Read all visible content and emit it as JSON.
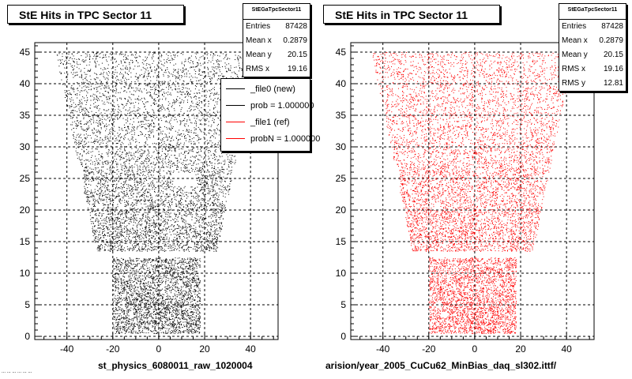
{
  "footer": "... ... ... ... ... ...",
  "chart_data": [
    {
      "type": "scatter",
      "title": "StE Hits in TPC Sector 11",
      "xlabel": "st_physics_6080011_raw_1020004",
      "ylabel": "",
      "xlim": [
        -54,
        52
      ],
      "ylim": [
        -0.5,
        46.5
      ],
      "x_ticks": [
        "-40",
        "-20",
        "0",
        "20",
        "40"
      ],
      "y_ticks": [
        "0",
        "5",
        "10",
        "15",
        "20",
        "25",
        "30",
        "35",
        "40",
        "45"
      ],
      "grid": true,
      "marker_color": "#000000",
      "stats": {
        "name": "StEGaTpcSector11",
        "rows": [
          {
            "label": "Entries",
            "value": "87428"
          },
          {
            "label": "Mean x",
            "value": "0.2879"
          },
          {
            "label": "Mean y",
            "value": "20.15"
          },
          {
            "label": "RMS x",
            "value": "19.16"
          }
        ]
      },
      "legend": [
        {
          "label": "_file0 (new)",
          "color": "#000000"
        },
        {
          "label": "prob = 1.000000",
          "color": "#000000"
        },
        {
          "label": "_file1 (ref)",
          "color": "#ff0000"
        },
        {
          "label": "probN = 1.000000",
          "color": "#ff0000"
        }
      ],
      "series": [
        {
          "entries": 87428,
          "rows": [
            {
              "y_range": [
                0.5,
                12.5
              ],
              "x_range": [
                -20,
                18
              ]
            },
            {
              "y_range": [
                13.5,
                27
              ],
              "x_range": [
                -33,
                37
              ]
            },
            {
              "y_range": [
                27,
                45
              ],
              "x_range": [
                -45,
                43
              ]
            }
          ],
          "holes": [
            {
              "x": [
                6,
                16
              ],
              "y": [
                23.8,
                26
              ]
            },
            {
              "x": [
                -17,
                -15
              ],
              "y": [
                4.5,
                5.5
              ]
            },
            {
              "x": [
                -13,
                -11
              ],
              "y": [
                3,
                4
              ]
            },
            {
              "x": [
                -40,
                -36
              ],
              "y": [
                40,
                41
              ]
            },
            {
              "x": [
                12,
                14
              ],
              "y": [
                18,
                19
              ]
            },
            {
              "x": [
                -18,
                -15
              ],
              "y": [
                20,
                21
              ]
            },
            {
              "x": [
                10,
                12
              ],
              "y": [
                35.5,
                36.5
              ]
            },
            {
              "x": [
                -5,
                -3
              ],
              "y": [
                30,
                31
              ]
            }
          ]
        }
      ]
    },
    {
      "type": "scatter",
      "title": "StE Hits in TPC Sector 11",
      "xlabel": "arision/year_2005_CuCu62_MinBias_daq_sl302.ittf/",
      "ylabel": "",
      "xlim": [
        -54,
        52
      ],
      "ylim": [
        -0.5,
        46.5
      ],
      "x_ticks": [
        "-40",
        "-20",
        "0",
        "20",
        "40"
      ],
      "y_ticks": [
        "0",
        "5",
        "10",
        "15",
        "20",
        "25",
        "30",
        "35",
        "40",
        "45"
      ],
      "grid": true,
      "marker_color": "#ff0000",
      "stats": {
        "name": "StEGaTpcSector11",
        "rows": [
          {
            "label": "Entries",
            "value": "87428"
          },
          {
            "label": "Mean x",
            "value": "0.2879"
          },
          {
            "label": "Mean y",
            "value": "20.15"
          },
          {
            "label": "RMS x",
            "value": "19.16"
          },
          {
            "label": "RMS y",
            "value": "12.81"
          }
        ]
      },
      "series": [
        {
          "entries": 87428,
          "rows": [
            {
              "y_range": [
                0.5,
                12.5
              ],
              "x_range": [
                -20,
                18
              ]
            },
            {
              "y_range": [
                13.5,
                27
              ],
              "x_range": [
                -33,
                37
              ]
            },
            {
              "y_range": [
                27,
                45
              ],
              "x_range": [
                -45,
                43
              ]
            }
          ],
          "holes": [
            {
              "x": [
                -15,
                -12
              ],
              "y": [
                3,
                4
              ]
            },
            {
              "x": [
                -17,
                -15
              ],
              "y": [
                4.5,
                5.5
              ]
            },
            {
              "x": [
                -40,
                -36
              ],
              "y": [
                40,
                41
              ]
            },
            {
              "x": [
                12,
                14
              ],
              "y": [
                18,
                19
              ]
            },
            {
              "x": [
                -18,
                -15
              ],
              "y": [
                20,
                21
              ]
            },
            {
              "x": [
                10,
                12
              ],
              "y": [
                35.5,
                36.5
              ]
            },
            {
              "x": [
                -5,
                -3
              ],
              "y": [
                30,
                31
              ]
            }
          ]
        }
      ]
    }
  ]
}
